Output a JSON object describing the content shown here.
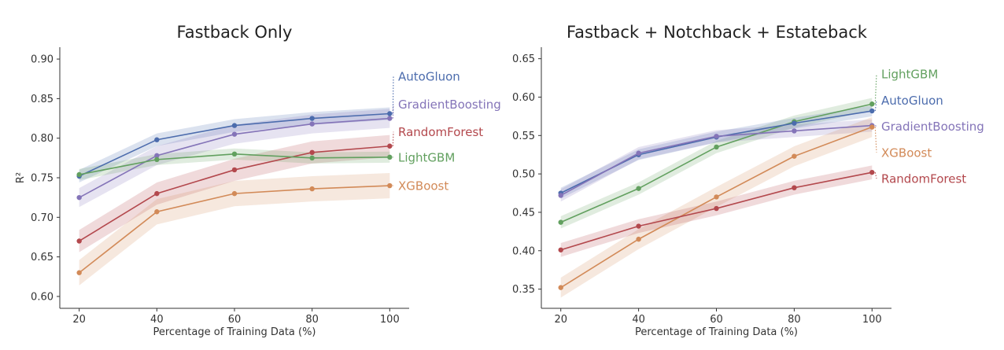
{
  "chart_data": [
    {
      "type": "line",
      "title": "Fastback Only",
      "xlabel": "Percentage of Training Data (%)",
      "ylabel": "R²",
      "x": [
        20,
        40,
        60,
        80,
        100
      ],
      "xlim": [
        15,
        105
      ],
      "ylim": [
        0.585,
        0.915
      ],
      "xticks": [
        "20",
        "40",
        "60",
        "80",
        "100"
      ],
      "yticks": [
        0.6,
        0.65,
        0.7,
        0.75,
        0.8,
        0.85,
        0.9
      ],
      "ytick_labels": [
        "0.60",
        "0.65",
        "0.70",
        "0.75",
        "0.80",
        "0.85",
        "0.90"
      ],
      "series": [
        {
          "name": "AutoGluon",
          "color": "#4c6cad",
          "values": [
            0.752,
            0.798,
            0.816,
            0.825,
            0.831
          ],
          "band": 0.008,
          "label_value": 0.878
        },
        {
          "name": "GradientBoosting",
          "color": "#8474b8",
          "values": [
            0.725,
            0.778,
            0.805,
            0.818,
            0.825
          ],
          "band": 0.012,
          "label_value": 0.843
        },
        {
          "name": "RandomForest",
          "color": "#b3484d",
          "values": [
            0.67,
            0.73,
            0.76,
            0.782,
            0.79
          ],
          "band": 0.014,
          "label_value": 0.808
        },
        {
          "name": "LightGBM",
          "color": "#62a05f",
          "values": [
            0.754,
            0.773,
            0.78,
            0.775,
            0.776
          ],
          "band": 0.007,
          "label_value": 0.776
        },
        {
          "name": "XGBoost",
          "color": "#d28a58",
          "values": [
            0.63,
            0.707,
            0.73,
            0.736,
            0.74
          ],
          "band": 0.016,
          "label_value": 0.74
        }
      ]
    },
    {
      "type": "line",
      "title": "Fastback + Notchback + Estateback",
      "xlabel": "Percentage of Training Data (%)",
      "ylabel": "",
      "x": [
        20,
        40,
        60,
        80,
        100
      ],
      "xlim": [
        15,
        105
      ],
      "ylim": [
        0.325,
        0.665
      ],
      "xticks": [
        "20",
        "40",
        "60",
        "80",
        "100"
      ],
      "yticks": [
        0.35,
        0.4,
        0.45,
        0.5,
        0.55,
        0.6,
        0.65
      ],
      "ytick_labels": [
        "0.35",
        "0.40",
        "0.45",
        "0.50",
        "0.55",
        "0.60",
        "0.65"
      ],
      "series": [
        {
          "name": "LightGBM",
          "color": "#62a05f",
          "values": [
            0.437,
            0.481,
            0.535,
            0.568,
            0.591
          ],
          "band": 0.008,
          "label_value": 0.63
        },
        {
          "name": "AutoGluon",
          "color": "#4c6cad",
          "values": [
            0.475,
            0.525,
            0.548,
            0.566,
            0.582
          ],
          "band": 0.007,
          "label_value": 0.596
        },
        {
          "name": "GradientBoosting",
          "color": "#8474b8",
          "values": [
            0.472,
            0.527,
            0.549,
            0.556,
            0.563
          ],
          "band": 0.008,
          "label_value": 0.562
        },
        {
          "name": "XGBoost",
          "color": "#d28a58",
          "values": [
            0.352,
            0.415,
            0.47,
            0.523,
            0.561
          ],
          "band": 0.013,
          "label_value": 0.528
        },
        {
          "name": "RandomForest",
          "color": "#b3484d",
          "values": [
            0.401,
            0.432,
            0.455,
            0.482,
            0.502
          ],
          "band": 0.009,
          "label_value": 0.494
        }
      ]
    }
  ]
}
